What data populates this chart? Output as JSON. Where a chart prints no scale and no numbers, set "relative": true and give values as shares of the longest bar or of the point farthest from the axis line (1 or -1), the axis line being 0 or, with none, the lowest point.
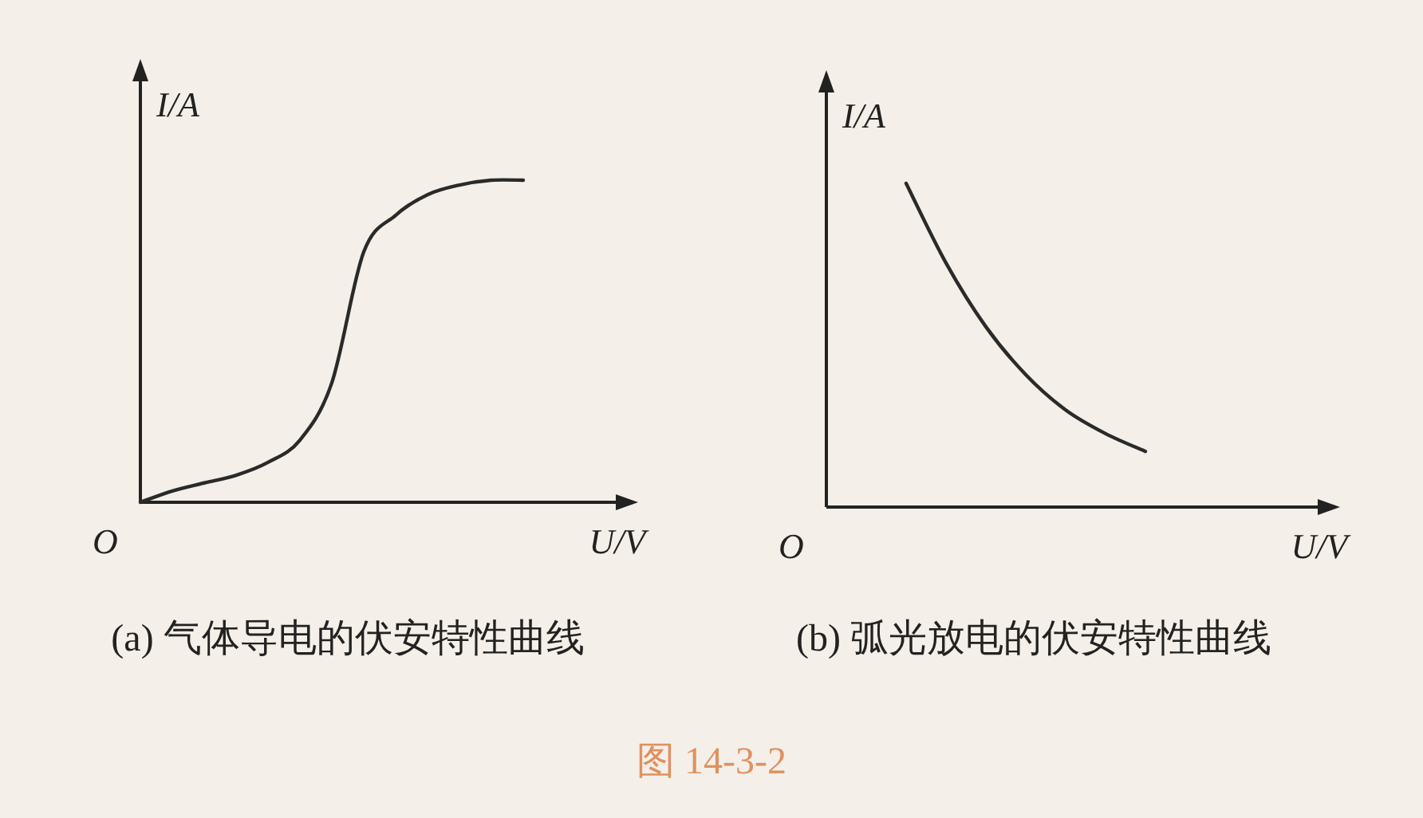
{
  "chart_data": [
    {
      "type": "line",
      "relative": true,
      "title": "(a) 气体导电的伏安特性曲线",
      "xlabel": "U/V",
      "ylabel": "I/A",
      "annotations": [
        "O",
        "图 14-3-2"
      ],
      "color": "#2a2a2a",
      "categories": [
        null,
        null,
        null,
        null,
        null,
        null,
        null,
        null,
        null,
        null,
        null,
        null,
        null,
        null,
        null,
        null
      ],
      "values": [
        0,
        0.035,
        0.06,
        0.084,
        0.124,
        0.193,
        0.371,
        0.777,
        0.891,
        0.955,
        0.985,
        1,
        1,
        null,
        null,
        null
      ]
    },
    {
      "type": "line",
      "relative": true,
      "title": "(b) 弧光放电的伏安特性曲线",
      "xlabel": "U/V",
      "ylabel": "I/A",
      "annotations": [
        "O"
      ],
      "color": "#2a2a2a",
      "categories": [
        null,
        null,
        null,
        null,
        null,
        null,
        null,
        null,
        null,
        null,
        null,
        null,
        null
      ],
      "values": [
        null,
        null,
        1,
        0.754,
        0.557,
        0.409,
        0.3,
        0.227,
        0.172,
        null,
        null,
        null,
        null
      ]
    }
  ]
}
